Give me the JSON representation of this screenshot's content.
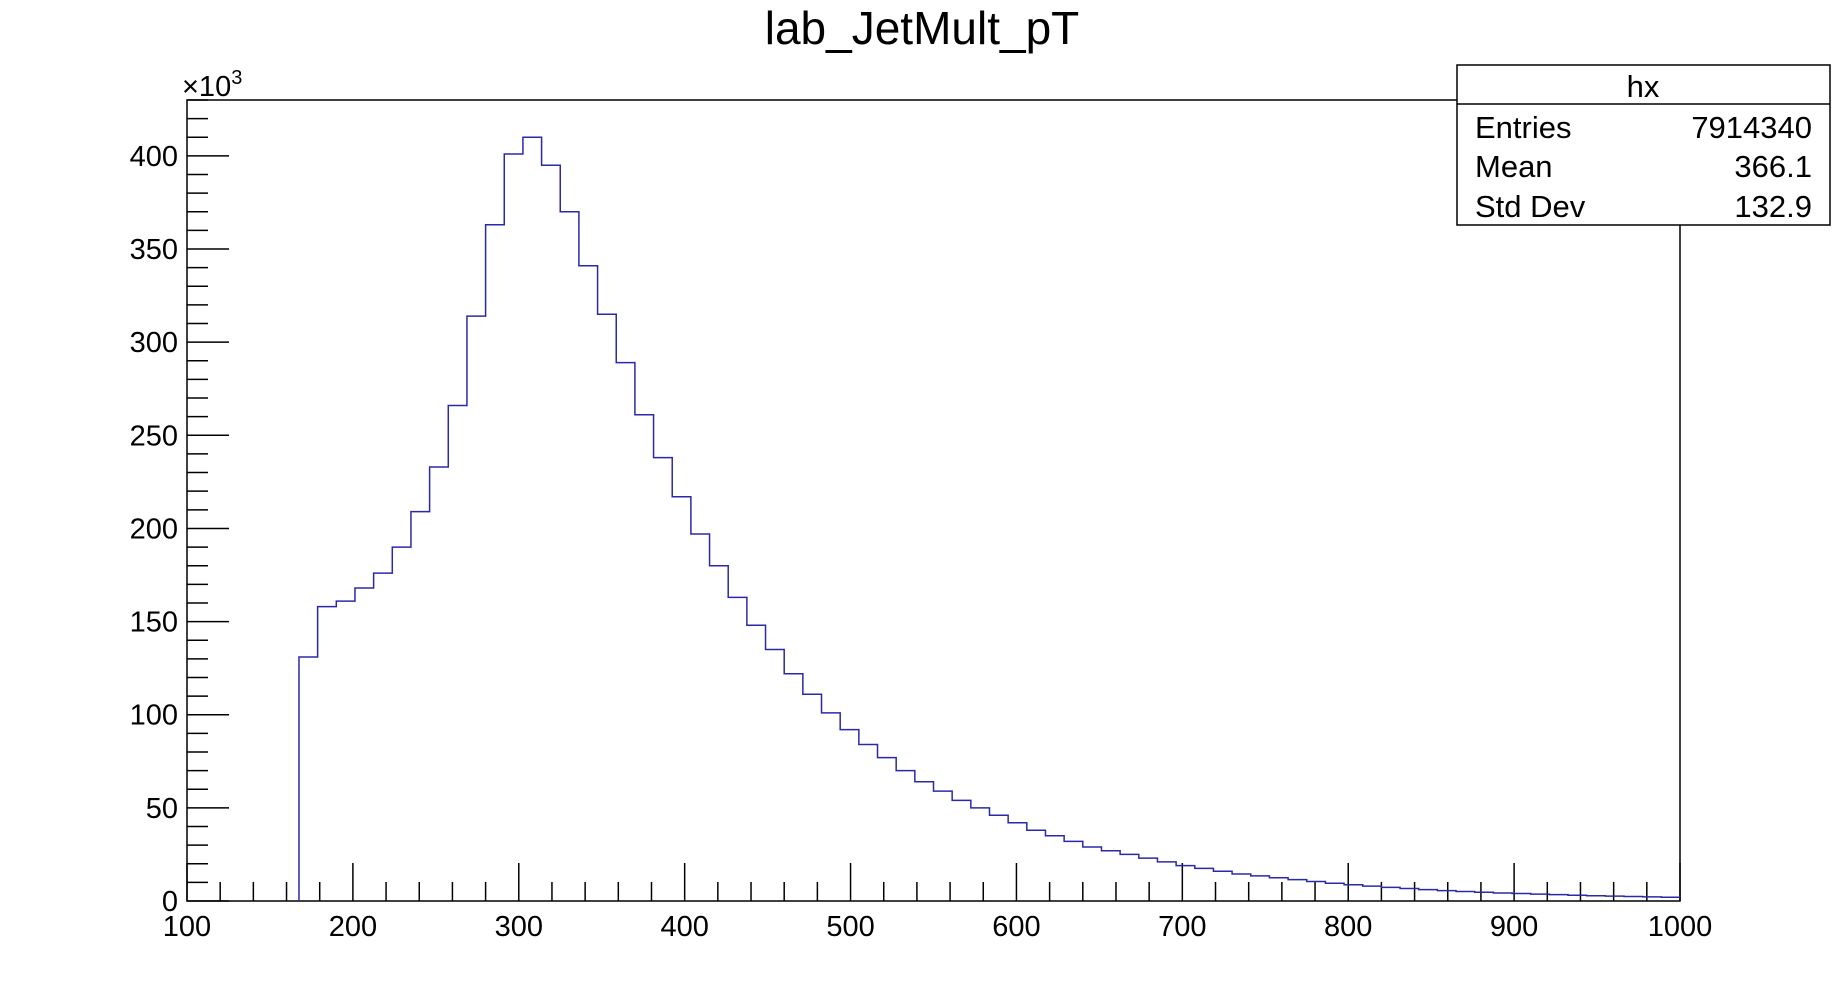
{
  "chart_data": {
    "type": "bar",
    "title": "lab_JetMult_pT",
    "xlabel": "",
    "ylabel": "",
    "x_range": [
      100,
      1000
    ],
    "y_range": [
      0,
      430
    ],
    "y_multiplier_label": "×10",
    "y_multiplier_exponent": "3",
    "x_ticks": [
      "100",
      "200",
      "300",
      "400",
      "500",
      "600",
      "700",
      "800",
      "900",
      "1000"
    ],
    "y_ticks": [
      "0",
      "50",
      "100",
      "150",
      "200",
      "250",
      "300",
      "350",
      "400"
    ],
    "bin_width": 11.25,
    "bin_left_edges": [
      167.5,
      178.75,
      190.0,
      201.25,
      212.5,
      223.75,
      235.0,
      246.25,
      257.5,
      268.75,
      280.0,
      291.25,
      302.5,
      313.75,
      325.0,
      336.25,
      347.5,
      358.75,
      370.0,
      381.25,
      392.5,
      403.75,
      415.0,
      426.25,
      437.5,
      448.75,
      460.0,
      471.25,
      482.5,
      493.75,
      505.0,
      516.25,
      527.5,
      538.75,
      550.0,
      561.25,
      572.5,
      583.75,
      595.0,
      606.25,
      617.5,
      628.75,
      640.0,
      651.25,
      662.5,
      673.75,
      685.0,
      696.25,
      707.5,
      718.75,
      730.0,
      741.25,
      752.5,
      763.75,
      775.0,
      786.25,
      797.5,
      808.75,
      820.0,
      831.25,
      842.5,
      853.75,
      865.0,
      876.25,
      887.5,
      898.75,
      910.0,
      921.25,
      932.5,
      943.75,
      955.0,
      966.25,
      977.5,
      988.75
    ],
    "values": [
      131,
      158,
      161,
      168,
      176,
      190,
      209,
      233,
      266,
      314,
      363,
      401,
      410,
      395,
      370,
      341,
      315,
      289,
      261,
      238,
      217,
      197,
      180,
      163,
      148,
      135,
      122,
      111,
      101,
      92,
      84,
      77,
      70,
      64,
      59,
      54,
      50,
      46,
      42,
      38,
      35,
      32,
      29,
      27,
      25,
      23,
      21,
      19,
      17.5,
      16,
      14.5,
      13.5,
      12.5,
      11.5,
      10.5,
      9.5,
      8.7,
      8,
      7.3,
      6.7,
      6.1,
      5.6,
      5.1,
      4.7,
      4.3,
      4,
      3.7,
      3.4,
      3.1,
      2.8,
      2.6,
      2.4,
      2.2,
      2
    ],
    "line_color": "#2a2aa8",
    "grid": false,
    "legend": "none"
  },
  "stats_box": {
    "name": "hx",
    "rows": [
      {
        "label": "Entries",
        "value": "7914340"
      },
      {
        "label": "Mean",
        "value": "366.1"
      },
      {
        "label": "Std Dev",
        "value": "132.9"
      }
    ]
  }
}
